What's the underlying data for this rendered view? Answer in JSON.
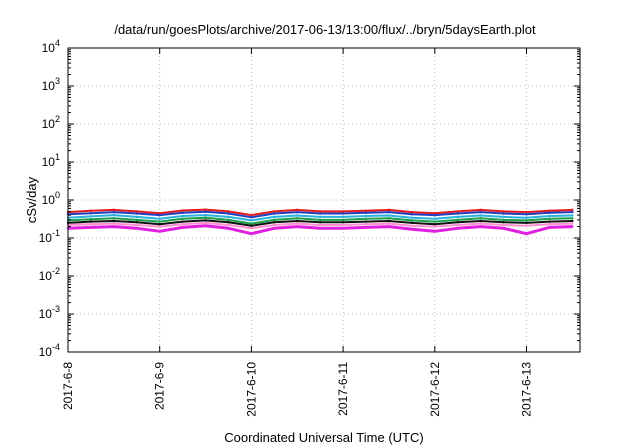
{
  "chart_data": {
    "type": "line",
    "title": "/data/run/goesPlots/archive/2017-06-13/13:00/flux/../bryn/5daysEarth.plot",
    "xlabel": "Coordinated Universal Time (UTC)",
    "ylabel": "cSv/day",
    "yscale": "log",
    "ylim": [
      0.0001,
      10000
    ],
    "xlim": [
      "2017-06-08T00:00",
      "2017-06-13T14:00"
    ],
    "grid": true,
    "y_ticks": [
      {
        "base": "10",
        "exp": "-4"
      },
      {
        "base": "10",
        "exp": "-3"
      },
      {
        "base": "10",
        "exp": "-2"
      },
      {
        "base": "10",
        "exp": "-1"
      },
      {
        "base": "10",
        "exp": "0"
      },
      {
        "base": "10",
        "exp": "1"
      },
      {
        "base": "10",
        "exp": "2"
      },
      {
        "base": "10",
        "exp": "3"
      },
      {
        "base": "10",
        "exp": "4"
      }
    ],
    "x_ticks": [
      "2017-6-8",
      "2017-6-9",
      "2017-6-10",
      "2017-6-11",
      "2017-6-12",
      "2017-6-13"
    ],
    "x": [
      "2017-06-08T00:00",
      "2017-06-08T06:00",
      "2017-06-08T12:00",
      "2017-06-08T18:00",
      "2017-06-09T00:00",
      "2017-06-09T06:00",
      "2017-06-09T12:00",
      "2017-06-09T18:00",
      "2017-06-10T00:00",
      "2017-06-10T06:00",
      "2017-06-10T12:00",
      "2017-06-10T18:00",
      "2017-06-11T00:00",
      "2017-06-11T06:00",
      "2017-06-11T12:00",
      "2017-06-11T18:00",
      "2017-06-12T00:00",
      "2017-06-12T06:00",
      "2017-06-12T12:00",
      "2017-06-12T18:00",
      "2017-06-13T00:00",
      "2017-06-13T06:00",
      "2017-06-13T12:00"
    ],
    "series": [
      {
        "color": "#e41a1c",
        "values": [
          0.48,
          0.52,
          0.55,
          0.5,
          0.45,
          0.53,
          0.56,
          0.5,
          0.4,
          0.5,
          0.55,
          0.5,
          0.5,
          0.52,
          0.55,
          0.48,
          0.45,
          0.5,
          0.55,
          0.5,
          0.48,
          0.52,
          0.55
        ]
      },
      {
        "color": "#1f3fbf",
        "values": [
          0.42,
          0.45,
          0.48,
          0.44,
          0.4,
          0.46,
          0.49,
          0.44,
          0.35,
          0.44,
          0.48,
          0.44,
          0.44,
          0.46,
          0.48,
          0.42,
          0.4,
          0.44,
          0.48,
          0.44,
          0.42,
          0.46,
          0.48
        ]
      },
      {
        "color": "#2bb0e0",
        "values": [
          0.34,
          0.37,
          0.4,
          0.36,
          0.32,
          0.38,
          0.4,
          0.36,
          0.29,
          0.36,
          0.39,
          0.36,
          0.36,
          0.38,
          0.39,
          0.34,
          0.32,
          0.36,
          0.39,
          0.36,
          0.34,
          0.38,
          0.39
        ]
      },
      {
        "color": "#1aa04a",
        "values": [
          0.29,
          0.31,
          0.33,
          0.3,
          0.27,
          0.32,
          0.34,
          0.3,
          0.24,
          0.3,
          0.33,
          0.3,
          0.3,
          0.32,
          0.33,
          0.29,
          0.27,
          0.3,
          0.33,
          0.3,
          0.29,
          0.32,
          0.33
        ]
      },
      {
        "color": "#111111",
        "values": [
          0.25,
          0.27,
          0.28,
          0.26,
          0.23,
          0.27,
          0.29,
          0.26,
          0.21,
          0.26,
          0.28,
          0.26,
          0.26,
          0.27,
          0.28,
          0.25,
          0.23,
          0.26,
          0.28,
          0.26,
          0.25,
          0.27,
          0.28
        ]
      },
      {
        "color": "#ff8fd0",
        "values": [
          0.22,
          0.23,
          0.24,
          0.22,
          0.2,
          0.23,
          0.25,
          0.22,
          0.18,
          0.22,
          0.24,
          0.22,
          0.22,
          0.23,
          0.24,
          0.21,
          0.2,
          0.22,
          0.24,
          0.22,
          0.21,
          0.23,
          0.24
        ]
      },
      {
        "color": "#e020e0",
        "values": [
          0.18,
          0.19,
          0.2,
          0.18,
          0.15,
          0.19,
          0.21,
          0.18,
          0.13,
          0.18,
          0.2,
          0.18,
          0.18,
          0.19,
          0.2,
          0.17,
          0.15,
          0.18,
          0.2,
          0.18,
          0.13,
          0.19,
          0.2
        ]
      }
    ]
  }
}
